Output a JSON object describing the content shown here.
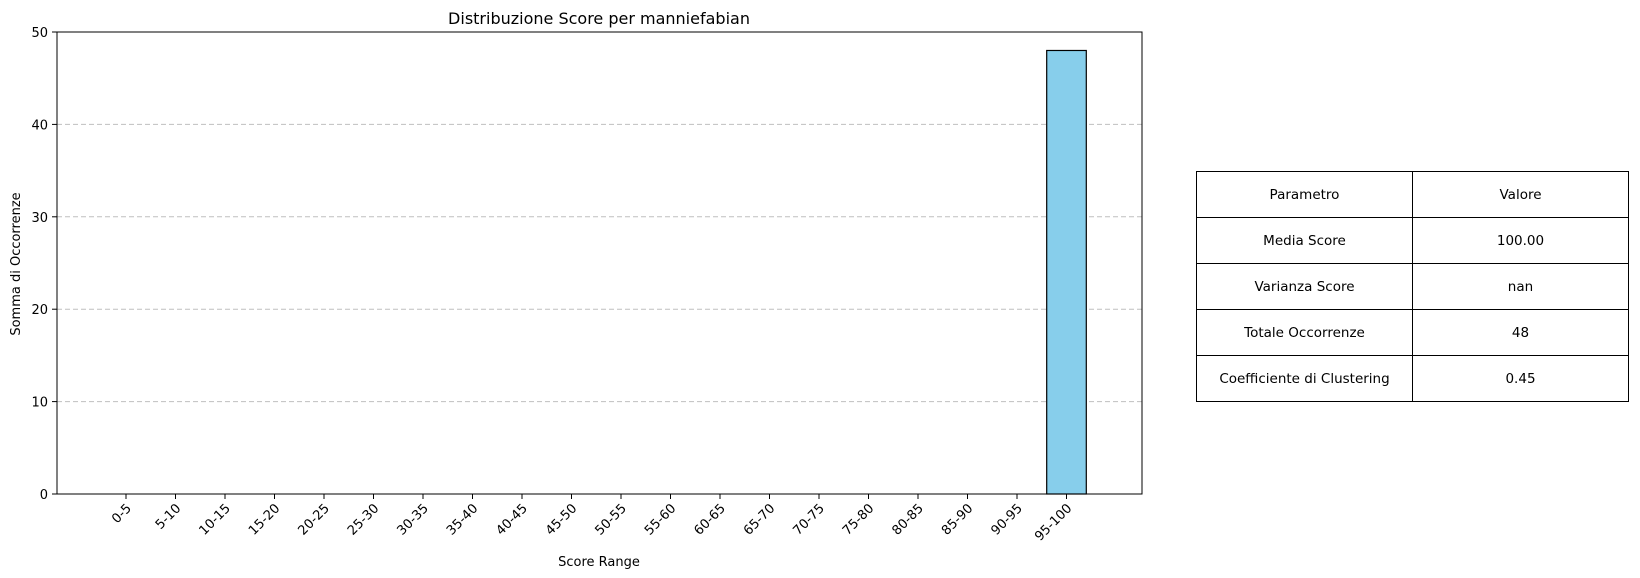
{
  "chart_data": {
    "type": "bar",
    "title": "Distribuzione Score per manniefabian",
    "xlabel": "Score Range",
    "ylabel": "Somma di Occorrenze",
    "categories": [
      "0-5",
      "5-10",
      "10-15",
      "15-20",
      "20-25",
      "25-30",
      "30-35",
      "35-40",
      "40-45",
      "45-50",
      "50-55",
      "55-60",
      "60-65",
      "65-70",
      "70-75",
      "75-80",
      "80-85",
      "85-90",
      "90-95",
      "95-100"
    ],
    "values": [
      0,
      0,
      0,
      0,
      0,
      0,
      0,
      0,
      0,
      0,
      0,
      0,
      0,
      0,
      0,
      0,
      0,
      0,
      0,
      48
    ],
    "ylim": [
      0,
      50
    ],
    "yticks": [
      0,
      10,
      20,
      30,
      40,
      50
    ],
    "grid": "y-dashed",
    "bar_color": "#87ceeb",
    "edge_color": "#000000"
  },
  "table": {
    "header": {
      "param": "Parametro",
      "value": "Valore"
    },
    "rows": [
      {
        "param": "Media Score",
        "value": "100.00"
      },
      {
        "param": "Varianza Score",
        "value": "nan"
      },
      {
        "param": "Totale Occorrenze",
        "value": "48"
      },
      {
        "param": "Coefficiente di Clustering",
        "value": "0.45"
      }
    ]
  }
}
